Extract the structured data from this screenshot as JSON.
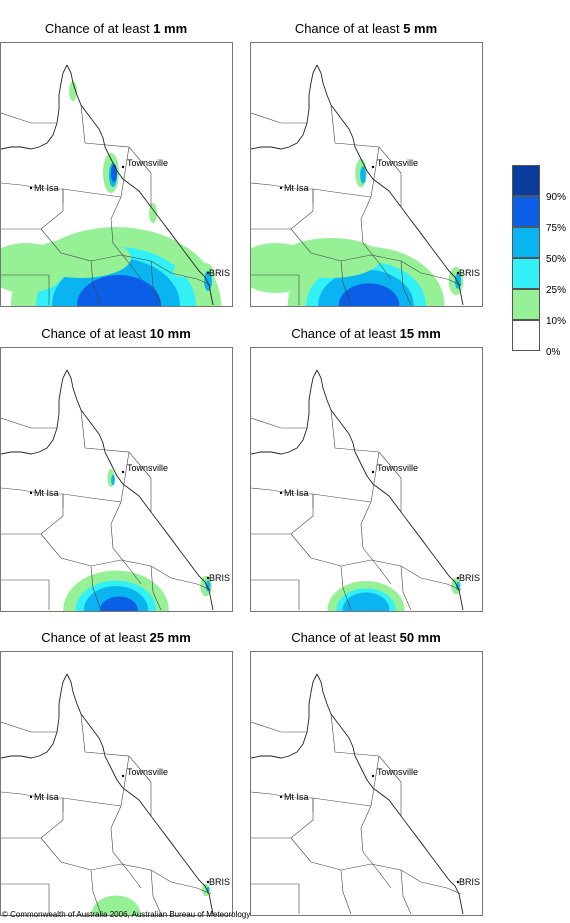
{
  "panels": [
    {
      "title_prefix": "Chance of at least ",
      "threshold": "1 mm",
      "intensity": 1.0
    },
    {
      "title_prefix": "Chance of at least ",
      "threshold": "5 mm",
      "intensity": 0.72
    },
    {
      "title_prefix": "Chance of at least ",
      "threshold": "10 mm",
      "intensity": 0.45
    },
    {
      "title_prefix": "Chance of at least ",
      "threshold": "15 mm",
      "intensity": 0.3
    },
    {
      "title_prefix": "Chance of at least ",
      "threshold": "25 mm",
      "intensity": 0.15
    },
    {
      "title_prefix": "Chance of at least ",
      "threshold": "50 mm",
      "intensity": 0.0
    }
  ],
  "cities": {
    "townsville": "Townsville",
    "mt_isa": "Mt Isa",
    "brisbane": "BRIS"
  },
  "legend": {
    "labels": [
      "90%",
      "75%",
      "50%",
      "25%",
      "10%",
      "0%"
    ],
    "colors": [
      "#0a3c9e",
      "#0a5fe6",
      "#0ab4f0",
      "#32f0f5",
      "#96f096",
      "#ffffff"
    ]
  },
  "copyright": "© Commonwealth of Australia 2006, Australian Bureau of Meteorology"
}
